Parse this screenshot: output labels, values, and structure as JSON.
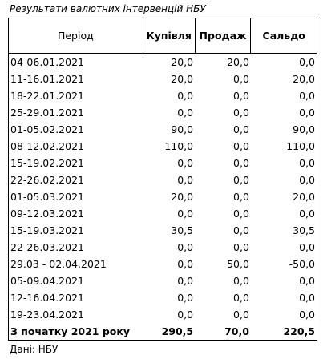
{
  "title": "Результати валютних інтервенцій НБУ",
  "table": {
    "header": [
      "Період",
      "Купівля",
      "Продаж",
      "Сальдо"
    ],
    "rows": [
      [
        "04-06.01.2021",
        "20,0",
        "20,0",
        "0,0"
      ],
      [
        "11-16.01.2021",
        "20,0",
        "0,0",
        "20,0"
      ],
      [
        "18-22.01.2021",
        "0,0",
        "0,0",
        "0,0"
      ],
      [
        "25-29.01.2021",
        "0,0",
        "0,0",
        "0,0"
      ],
      [
        "01-05.02.2021",
        "90,0",
        "0,0",
        "90,0"
      ],
      [
        "08-12.02.2021",
        "110,0",
        "0,0",
        "110,0"
      ],
      [
        "15-19.02.2021",
        "0,0",
        "0,0",
        "0,0"
      ],
      [
        "22-26.02.2021",
        "0,0",
        "0,0",
        "0,0"
      ],
      [
        "01-05.03.2021",
        "20,0",
        "0,0",
        "20,0"
      ],
      [
        "09-12.03.2021",
        "0,0",
        "0,0",
        "0,0"
      ],
      [
        "15-19.03.2021",
        "30,5",
        "0,0",
        "30,5"
      ],
      [
        "22-26.03.2021",
        "0,0",
        "0,0",
        "0,0"
      ],
      [
        "29.03 - 02.04.2021",
        "0,0",
        "50,0",
        "-50,0"
      ],
      [
        "05-09.04.2021",
        "0,0",
        "0,0",
        "0,0"
      ],
      [
        "12-16.04.2021",
        "0,0",
        "0,0",
        "0,0"
      ],
      [
        "19-23.04.2021",
        "0,0",
        "0,0",
        "0,0"
      ]
    ],
    "total": [
      "З початку 2021 року",
      "290,5",
      "70,0",
      "220,5"
    ]
  },
  "source": "Дані: НБУ"
}
